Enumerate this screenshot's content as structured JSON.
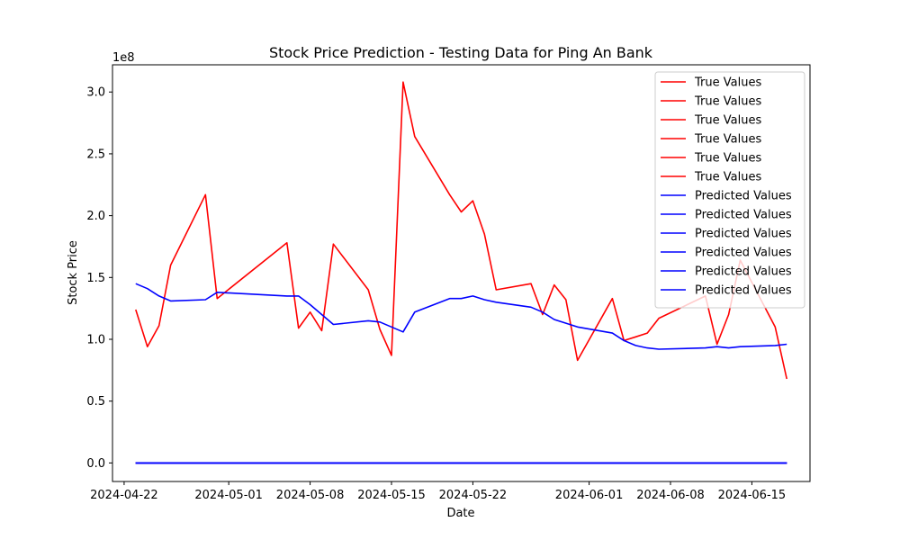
{
  "chart_data": {
    "type": "line",
    "title": "Stock Price Prediction - Testing Data for Ping An Bank",
    "xlabel": "Date",
    "ylabel": "Stock Price",
    "y_offset_label": "1e8",
    "y_multiplier": 100000000,
    "ylim": [
      -0.15,
      3.22
    ],
    "y_ticks": [
      0.0,
      0.5,
      1.0,
      1.5,
      2.0,
      2.5,
      3.0
    ],
    "y_tick_labels": [
      "0.0",
      "0.5",
      "1.0",
      "1.5",
      "2.0",
      "2.5",
      "3.0"
    ],
    "xlim": [
      "2024-04-21",
      "2024-06-20"
    ],
    "x_ticks": [
      "2024-04-22",
      "2024-05-01",
      "2024-05-08",
      "2024-05-15",
      "2024-05-22",
      "2024-06-01",
      "2024-06-08",
      "2024-06-15"
    ],
    "x_tick_labels": [
      "2024-04-22",
      "2024-05-01",
      "2024-05-08",
      "2024-05-15",
      "2024-05-22",
      "2024-06-01",
      "2024-06-08",
      "2024-06-15"
    ],
    "grid": false,
    "legend_placement": "top-right",
    "dates": [
      "2024-04-23",
      "2024-04-24",
      "2024-04-25",
      "2024-04-26",
      "2024-04-29",
      "2024-04-30",
      "2024-05-06",
      "2024-05-07",
      "2024-05-08",
      "2024-05-09",
      "2024-05-10",
      "2024-05-13",
      "2024-05-14",
      "2024-05-15",
      "2024-05-16",
      "2024-05-17",
      "2024-05-20",
      "2024-05-21",
      "2024-05-22",
      "2024-05-23",
      "2024-05-24",
      "2024-05-27",
      "2024-05-28",
      "2024-05-29",
      "2024-05-30",
      "2024-05-31",
      "2024-06-03",
      "2024-06-04",
      "2024-06-05",
      "2024-06-06",
      "2024-06-07",
      "2024-06-11",
      "2024-06-12",
      "2024-06-13",
      "2024-06-14",
      "2024-06-17",
      "2024-06-18"
    ],
    "series": [
      {
        "name": "True Values",
        "color": "#ff0000",
        "values": [
          1.24,
          0.94,
          1.11,
          1.6,
          2.17,
          1.33,
          1.78,
          1.09,
          1.22,
          1.07,
          1.77,
          1.4,
          1.08,
          0.87,
          3.08,
          2.64,
          2.17,
          2.03,
          2.12,
          1.85,
          1.4,
          1.45,
          1.2,
          1.44,
          1.32,
          0.83,
          1.33,
          0.99,
          1.02,
          1.05,
          1.17,
          1.35,
          0.96,
          1.2,
          1.64,
          1.1,
          0.68
        ]
      },
      {
        "name": "True Values",
        "color": "#ff0000",
        "values": [
          0,
          0,
          0,
          0,
          0,
          0,
          0,
          0,
          0,
          0,
          0,
          0,
          0,
          0,
          0,
          0,
          0,
          0,
          0,
          0,
          0,
          0,
          0,
          0,
          0,
          0,
          0,
          0,
          0,
          0,
          0,
          0,
          0,
          0,
          0,
          0,
          0
        ]
      },
      {
        "name": "True Values",
        "color": "#ff0000",
        "values": [
          0,
          0,
          0,
          0,
          0,
          0,
          0,
          0,
          0,
          0,
          0,
          0,
          0,
          0,
          0,
          0,
          0,
          0,
          0,
          0,
          0,
          0,
          0,
          0,
          0,
          0,
          0,
          0,
          0,
          0,
          0,
          0,
          0,
          0,
          0,
          0,
          0
        ]
      },
      {
        "name": "True Values",
        "color": "#ff0000",
        "values": [
          0,
          0,
          0,
          0,
          0,
          0,
          0,
          0,
          0,
          0,
          0,
          0,
          0,
          0,
          0,
          0,
          0,
          0,
          0,
          0,
          0,
          0,
          0,
          0,
          0,
          0,
          0,
          0,
          0,
          0,
          0,
          0,
          0,
          0,
          0,
          0,
          0
        ]
      },
      {
        "name": "True Values",
        "color": "#ff0000",
        "values": [
          0,
          0,
          0,
          0,
          0,
          0,
          0,
          0,
          0,
          0,
          0,
          0,
          0,
          0,
          0,
          0,
          0,
          0,
          0,
          0,
          0,
          0,
          0,
          0,
          0,
          0,
          0,
          0,
          0,
          0,
          0,
          0,
          0,
          0,
          0,
          0,
          0
        ]
      },
      {
        "name": "True Values",
        "color": "#ff0000",
        "values": [
          0,
          0,
          0,
          0,
          0,
          0,
          0,
          0,
          0,
          0,
          0,
          0,
          0,
          0,
          0,
          0,
          0,
          0,
          0,
          0,
          0,
          0,
          0,
          0,
          0,
          0,
          0,
          0,
          0,
          0,
          0,
          0,
          0,
          0,
          0,
          0,
          0
        ]
      },
      {
        "name": "Predicted Values",
        "color": "#0000ff",
        "values": [
          1.45,
          1.41,
          1.35,
          1.31,
          1.32,
          1.38,
          1.35,
          1.35,
          1.28,
          1.2,
          1.12,
          1.15,
          1.14,
          1.1,
          1.06,
          1.22,
          1.33,
          1.33,
          1.35,
          1.32,
          1.3,
          1.26,
          1.22,
          1.16,
          1.13,
          1.1,
          1.05,
          0.99,
          0.95,
          0.93,
          0.92,
          0.93,
          0.94,
          0.93,
          0.94,
          0.95,
          0.96
        ]
      },
      {
        "name": "Predicted Values",
        "color": "#0000ff",
        "values": [
          0,
          0,
          0,
          0,
          0,
          0,
          0,
          0,
          0,
          0,
          0,
          0,
          0,
          0,
          0,
          0,
          0,
          0,
          0,
          0,
          0,
          0,
          0,
          0,
          0,
          0,
          0,
          0,
          0,
          0,
          0,
          0,
          0,
          0,
          0,
          0,
          0
        ]
      },
      {
        "name": "Predicted Values",
        "color": "#0000ff",
        "values": [
          0,
          0,
          0,
          0,
          0,
          0,
          0,
          0,
          0,
          0,
          0,
          0,
          0,
          0,
          0,
          0,
          0,
          0,
          0,
          0,
          0,
          0,
          0,
          0,
          0,
          0,
          0,
          0,
          0,
          0,
          0,
          0,
          0,
          0,
          0,
          0,
          0
        ]
      },
      {
        "name": "Predicted Values",
        "color": "#0000ff",
        "values": [
          0,
          0,
          0,
          0,
          0,
          0,
          0,
          0,
          0,
          0,
          0,
          0,
          0,
          0,
          0,
          0,
          0,
          0,
          0,
          0,
          0,
          0,
          0,
          0,
          0,
          0,
          0,
          0,
          0,
          0,
          0,
          0,
          0,
          0,
          0,
          0,
          0
        ]
      },
      {
        "name": "Predicted Values",
        "color": "#0000ff",
        "values": [
          0,
          0,
          0,
          0,
          0,
          0,
          0,
          0,
          0,
          0,
          0,
          0,
          0,
          0,
          0,
          0,
          0,
          0,
          0,
          0,
          0,
          0,
          0,
          0,
          0,
          0,
          0,
          0,
          0,
          0,
          0,
          0,
          0,
          0,
          0,
          0,
          0
        ]
      },
      {
        "name": "Predicted Values",
        "color": "#0000ff",
        "values": [
          0,
          0,
          0,
          0,
          0,
          0,
          0,
          0,
          0,
          0,
          0,
          0,
          0,
          0,
          0,
          0,
          0,
          0,
          0,
          0,
          0,
          0,
          0,
          0,
          0,
          0,
          0,
          0,
          0,
          0,
          0,
          0,
          0,
          0,
          0,
          0,
          0
        ]
      }
    ]
  }
}
